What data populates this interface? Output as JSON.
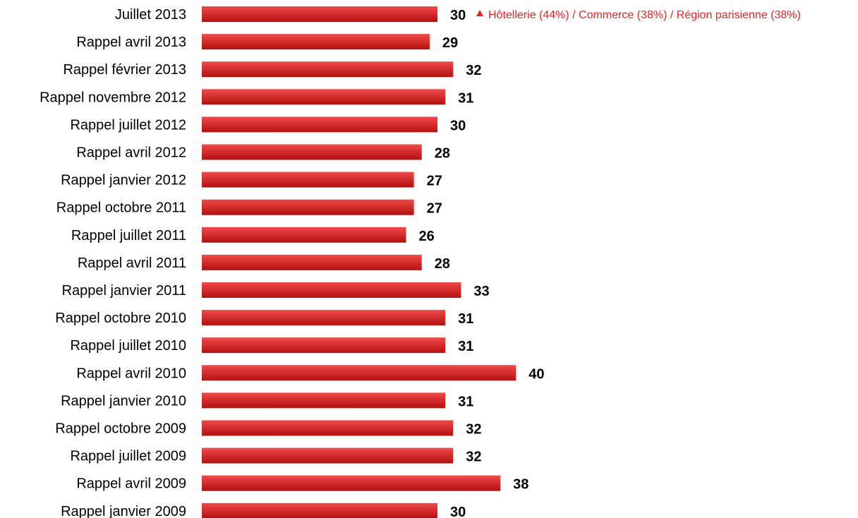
{
  "chart_data": {
    "type": "bar",
    "orientation": "horizontal",
    "categories": [
      "Juillet 2013",
      "Rappel avril 2013",
      "Rappel  février 2013",
      "Rappel novembre 2012",
      "Rappel juillet 2012",
      "Rappel avril 2012",
      "Rappel janvier 2012",
      "Rappel octobre 2011",
      "Rappel juillet 2011",
      "Rappel avril 2011",
      "Rappel janvier 2011",
      "Rappel octobre 2010",
      "Rappel juillet 2010",
      "Rappel avril 2010",
      "Rappel janvier 2010",
      "Rappel octobre 2009",
      "Rappel juillet 2009",
      "Rappel avril 2009",
      "Rappel janvier 2009"
    ],
    "values": [
      30,
      29,
      32,
      31,
      30,
      28,
      27,
      27,
      26,
      28,
      33,
      31,
      31,
      40,
      31,
      32,
      32,
      38,
      30
    ],
    "xlim": [
      0,
      40
    ],
    "grid": false,
    "colors": {
      "bar_top": "#f04a4a",
      "bar_bottom": "#b31010",
      "note": "#e0262b"
    },
    "annotation": {
      "category": "Juillet 2013",
      "marker": "up-triangle-icon",
      "text": "Hôtellerie (44%) / Commerce (38%) / Région parisienne (38%)"
    }
  }
}
